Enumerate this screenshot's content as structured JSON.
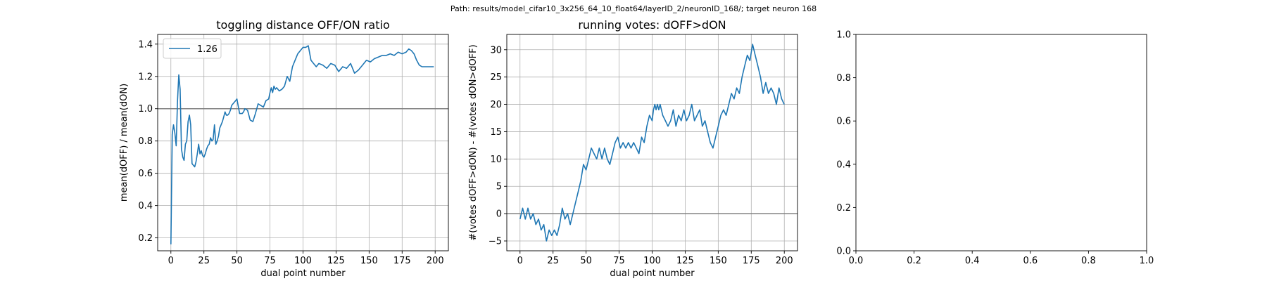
{
  "suptitle": "Path: results/model_cifar10_3x256_64_10_float64/layerID_2/neuronID_168/; target neuron 168",
  "colors": {
    "line": "#1f77b4",
    "refline": "#808080",
    "grid": "#b0b0b0",
    "axes": "#000000"
  },
  "chart_data": [
    {
      "type": "line",
      "title": "toggling distance OFF/ON ratio",
      "xlabel": "dual point number",
      "ylabel": "mean(dOFF) / mean(dON)",
      "xlim": [
        -10,
        210
      ],
      "ylim": [
        0.12,
        1.46
      ],
      "xticks": [
        0,
        25,
        50,
        75,
        100,
        125,
        150,
        175,
        200
      ],
      "xtick_labels": [
        "0",
        "25",
        "50",
        "75",
        "100",
        "125",
        "150",
        "175",
        "200"
      ],
      "yticks": [
        0.2,
        0.4,
        0.6,
        0.8,
        1.0,
        1.2,
        1.4
      ],
      "ytick_labels": [
        "0.2",
        "0.4",
        "0.6",
        "0.8",
        "1.0",
        "1.2",
        "1.4"
      ],
      "grid": true,
      "hline": 1.0,
      "legend": {
        "location": "upper left",
        "entries": [
          "1.26"
        ]
      },
      "series": [
        {
          "name": "1.26",
          "x": [
            0,
            1,
            2,
            3,
            4,
            5,
            6,
            7,
            8,
            9,
            10,
            11,
            12,
            13,
            14,
            15,
            16,
            17,
            18,
            19,
            20,
            21,
            22,
            23,
            24,
            25,
            26,
            27,
            28,
            29,
            30,
            31,
            32,
            33,
            34,
            35,
            36,
            37,
            38,
            39,
            40,
            41,
            42,
            43,
            44,
            45,
            46,
            47,
            48,
            49,
            50,
            52,
            54,
            55,
            56,
            58,
            60,
            62,
            64,
            66,
            68,
            70,
            72,
            74,
            75,
            76,
            77,
            78,
            79,
            80,
            82,
            84,
            86,
            88,
            90,
            92,
            94,
            96,
            98,
            100,
            102,
            104,
            106,
            108,
            110,
            112,
            115,
            118,
            121,
            124,
            127,
            130,
            133,
            136,
            139,
            142,
            145,
            148,
            151,
            154,
            157,
            160,
            163,
            166,
            169,
            172,
            175,
            178,
            180,
            182,
            184,
            186,
            188,
            190,
            193,
            196,
            199
          ],
          "values": [
            0.16,
            0.84,
            0.9,
            0.85,
            0.77,
            1.05,
            1.21,
            1.12,
            0.75,
            0.7,
            0.68,
            0.78,
            0.8,
            0.92,
            0.96,
            0.9,
            0.66,
            0.65,
            0.64,
            0.67,
            0.72,
            0.78,
            0.72,
            0.74,
            0.71,
            0.7,
            0.72,
            0.75,
            0.77,
            0.78,
            0.82,
            0.8,
            0.81,
            0.9,
            0.78,
            0.8,
            0.83,
            0.88,
            0.9,
            0.92,
            0.95,
            0.98,
            0.96,
            0.96,
            0.97,
            0.99,
            1.02,
            1.03,
            1.04,
            1.05,
            1.06,
            0.97,
            0.97,
            0.98,
            1.0,
            0.99,
            0.93,
            0.92,
            0.97,
            1.03,
            1.02,
            1.01,
            1.05,
            1.06,
            1.1,
            1.13,
            1.1,
            1.14,
            1.12,
            1.13,
            1.11,
            1.12,
            1.14,
            1.2,
            1.17,
            1.26,
            1.3,
            1.34,
            1.36,
            1.38,
            1.38,
            1.39,
            1.3,
            1.28,
            1.26,
            1.28,
            1.27,
            1.25,
            1.28,
            1.27,
            1.23,
            1.26,
            1.25,
            1.28,
            1.22,
            1.24,
            1.27,
            1.3,
            1.29,
            1.31,
            1.32,
            1.33,
            1.33,
            1.34,
            1.33,
            1.35,
            1.34,
            1.35,
            1.37,
            1.36,
            1.34,
            1.3,
            1.27,
            1.26,
            1.26,
            1.26,
            1.26
          ]
        }
      ]
    },
    {
      "type": "line",
      "title": "running votes: dOFF>dON",
      "xlabel": "dual point number",
      "ylabel": "#(votes dOFF>dON) - #(votes dON>dOFF)",
      "xlim": [
        -10,
        210
      ],
      "ylim": [
        -6.8,
        32.8
      ],
      "xticks": [
        0,
        25,
        50,
        75,
        100,
        125,
        150,
        175,
        200
      ],
      "xtick_labels": [
        "0",
        "25",
        "50",
        "75",
        "100",
        "125",
        "150",
        "175",
        "200"
      ],
      "yticks": [
        -5,
        0,
        5,
        10,
        15,
        20,
        25,
        30
      ],
      "ytick_labels": [
        "−5",
        "0",
        "5",
        "10",
        "15",
        "20",
        "25",
        "30"
      ],
      "grid": true,
      "hline": 0,
      "series": [
        {
          "x": [
            0,
            2,
            4,
            6,
            8,
            10,
            12,
            14,
            16,
            18,
            20,
            22,
            24,
            26,
            28,
            30,
            32,
            34,
            36,
            38,
            40,
            42,
            44,
            46,
            48,
            50,
            52,
            54,
            56,
            58,
            60,
            62,
            64,
            66,
            68,
            70,
            72,
            74,
            76,
            78,
            80,
            82,
            84,
            86,
            88,
            90,
            92,
            94,
            96,
            98,
            100,
            101,
            102,
            103,
            104,
            105,
            106,
            108,
            110,
            112,
            114,
            116,
            118,
            120,
            122,
            124,
            126,
            128,
            130,
            132,
            134,
            136,
            138,
            140,
            142,
            144,
            146,
            148,
            150,
            152,
            154,
            156,
            158,
            160,
            162,
            164,
            166,
            168,
            170,
            172,
            174,
            176,
            178,
            180,
            182,
            184,
            186,
            188,
            190,
            192,
            194,
            196,
            198,
            200
          ],
          "values": [
            -1,
            1,
            -1,
            1,
            -1,
            0,
            -2,
            -1,
            -3,
            -2,
            -5,
            -3,
            -4,
            -3,
            -4,
            -2,
            1,
            -1,
            0,
            -2,
            0,
            2,
            4,
            6,
            9,
            8,
            10,
            12,
            11,
            10,
            12,
            10,
            12,
            10,
            9,
            11,
            13,
            14,
            12,
            13,
            12,
            13,
            12,
            13,
            12,
            11,
            14,
            13,
            16,
            18,
            17,
            19,
            20,
            19,
            20,
            19,
            20,
            18,
            17,
            16,
            17,
            19,
            16,
            18,
            17,
            19,
            17,
            18,
            20,
            17,
            18,
            19,
            16,
            17,
            15,
            13,
            12,
            14,
            16,
            18,
            19,
            18,
            20,
            22,
            21,
            23,
            22,
            25,
            27,
            29,
            28,
            31,
            29,
            27,
            25,
            22,
            24,
            22,
            23,
            22,
            20,
            23,
            21,
            20
          ]
        }
      ]
    },
    {
      "type": "line",
      "title": "",
      "xlabel": "",
      "ylabel": "",
      "xlim": [
        0,
        1
      ],
      "ylim": [
        0,
        1
      ],
      "xticks": [
        0,
        0.2,
        0.4,
        0.6,
        0.8,
        1
      ],
      "xtick_labels": [
        "0.0",
        "0.2",
        "0.4",
        "0.6",
        "0.8",
        "1.0"
      ],
      "yticks": [
        0,
        0.2,
        0.4,
        0.6,
        0.8,
        1
      ],
      "ytick_labels": [
        "0.0",
        "0.2",
        "0.4",
        "0.6",
        "0.8",
        "1.0"
      ],
      "grid": false,
      "series": []
    }
  ]
}
